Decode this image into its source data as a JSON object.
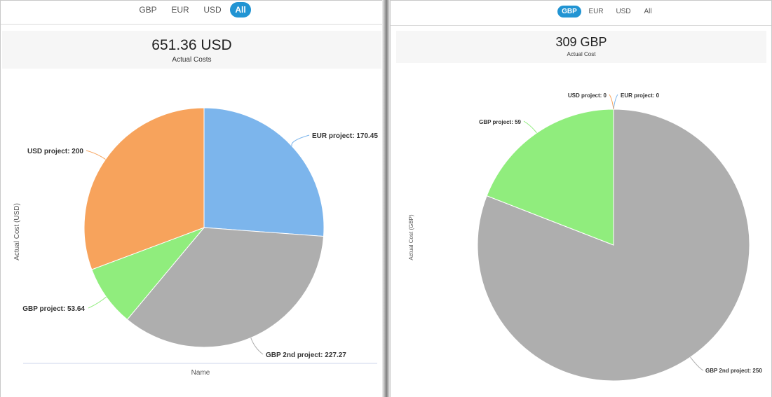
{
  "left": {
    "tabs": [
      {
        "label": "GBP",
        "active": false
      },
      {
        "label": "EUR",
        "active": false
      },
      {
        "label": "USD",
        "active": false
      },
      {
        "label": "All",
        "active": true
      }
    ],
    "total": "651.36 USD",
    "total_label": "Actual Costs"
  },
  "right": {
    "tabs": [
      {
        "label": "GBP",
        "active": true
      },
      {
        "label": "EUR",
        "active": false
      },
      {
        "label": "USD",
        "active": false
      },
      {
        "label": "All",
        "active": false
      }
    ],
    "total": "309 GBP",
    "total_label": "Actual Cost"
  },
  "chart_data": [
    {
      "type": "pie",
      "ylabel": "Actual Cost (USD)",
      "xlabel": "Name",
      "slices": [
        {
          "name": "EUR project",
          "value": 170.45,
          "label": "EUR project: 170.45",
          "color": "#7cb5ec"
        },
        {
          "name": "GBP 2nd project",
          "value": 227.27,
          "label": "GBP 2nd project: 227.27",
          "color": "#aeaeae"
        },
        {
          "name": "GBP project",
          "value": 53.64,
          "label": "GBP project: 53.64",
          "color": "#90ed7d"
        },
        {
          "name": "USD project",
          "value": 200,
          "label": "USD project: 200",
          "color": "#f7a35c"
        }
      ]
    },
    {
      "type": "pie",
      "ylabel": "Actual Cost (GBP)",
      "xlabel": "",
      "slices": [
        {
          "name": "EUR project",
          "value": 0,
          "label": "EUR project: 0",
          "color": "#7cb5ec"
        },
        {
          "name": "GBP 2nd project",
          "value": 250,
          "label": "GBP 2nd project: 250",
          "color": "#aeaeae"
        },
        {
          "name": "GBP project",
          "value": 59,
          "label": "GBP project: 59",
          "color": "#90ed7d"
        },
        {
          "name": "USD project",
          "value": 0,
          "label": "USD project: 0",
          "color": "#f7a35c"
        }
      ]
    }
  ]
}
